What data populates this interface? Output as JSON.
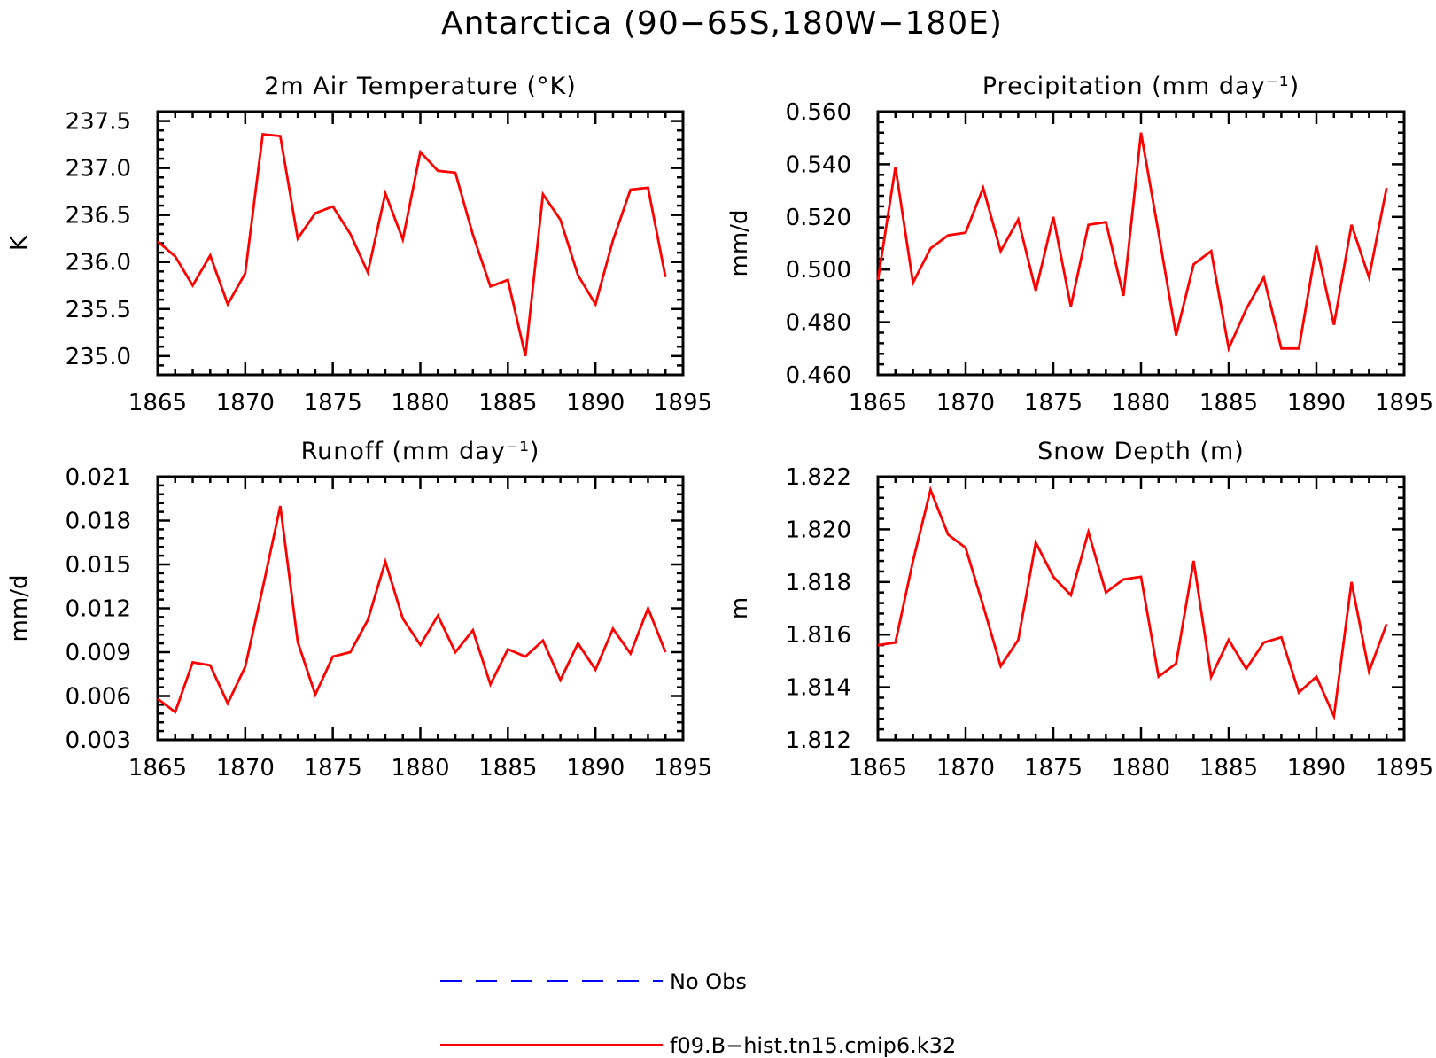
{
  "figure": {
    "title": "Antarctica (90−65S,180W−180E)"
  },
  "legend": [
    {
      "label": "No Obs",
      "color": "#0000ff",
      "style": "dashed"
    },
    {
      "label": "f09.B−hist.tn15.cmip6.k32",
      "color": "#ff0000",
      "style": "solid"
    }
  ],
  "chart_data": [
    {
      "type": "line",
      "title": "2m Air Temperature (°K)",
      "xlabel": "",
      "ylabel": "K",
      "xlim": [
        1865,
        1895
      ],
      "ylim": [
        234.8,
        237.6
      ],
      "xticks": [
        "1865",
        "1870",
        "1875",
        "1880",
        "1885",
        "1890",
        "1895"
      ],
      "yticks": [
        "235.0",
        "235.5",
        "236.0",
        "236.5",
        "237.0",
        "237.5"
      ],
      "series": [
        {
          "color": "#ff0000",
          "x": [
            1865,
            1866,
            1867,
            1868,
            1869,
            1870,
            1871,
            1872,
            1873,
            1874,
            1875,
            1876,
            1877,
            1878,
            1879,
            1880,
            1881,
            1882,
            1883,
            1884,
            1885,
            1886,
            1887,
            1888,
            1889,
            1890,
            1891,
            1892,
            1893,
            1894
          ],
          "values": [
            236.22,
            236.06,
            235.75,
            236.07,
            235.55,
            235.88,
            237.36,
            237.34,
            236.25,
            236.52,
            236.59,
            236.3,
            235.89,
            236.73,
            236.24,
            237.17,
            236.97,
            236.95,
            236.29,
            235.74,
            235.81,
            235.0,
            236.72,
            236.45,
            235.86,
            235.55,
            236.23,
            236.77,
            236.79,
            235.84
          ]
        }
      ]
    },
    {
      "type": "line",
      "title": "Precipitation (mm day⁻¹)",
      "xlabel": "",
      "ylabel": "mm/d",
      "xlim": [
        1865,
        1895
      ],
      "ylim": [
        0.46,
        0.56
      ],
      "xticks": [
        "1865",
        "1870",
        "1875",
        "1880",
        "1885",
        "1890",
        "1895"
      ],
      "yticks": [
        "0.460",
        "0.480",
        "0.500",
        "0.520",
        "0.540",
        "0.560"
      ],
      "series": [
        {
          "color": "#ff0000",
          "x": [
            1865,
            1866,
            1867,
            1868,
            1869,
            1870,
            1871,
            1872,
            1873,
            1874,
            1875,
            1876,
            1877,
            1878,
            1879,
            1880,
            1881,
            1882,
            1883,
            1884,
            1885,
            1886,
            1887,
            1888,
            1889,
            1890,
            1891,
            1892,
            1893,
            1894
          ],
          "values": [
            0.496,
            0.539,
            0.495,
            0.508,
            0.513,
            0.514,
            0.531,
            0.507,
            0.519,
            0.492,
            0.52,
            0.486,
            0.517,
            0.518,
            0.49,
            0.552,
            0.514,
            0.475,
            0.502,
            0.507,
            0.47,
            0.485,
            0.497,
            0.47,
            0.47,
            0.509,
            0.479,
            0.517,
            0.497,
            0.531
          ]
        }
      ]
    },
    {
      "type": "line",
      "title": "Runoff (mm day⁻¹)",
      "xlabel": "",
      "ylabel": "mm/d",
      "xlim": [
        1865,
        1895
      ],
      "ylim": [
        0.003,
        0.021
      ],
      "xticks": [
        "1865",
        "1870",
        "1875",
        "1880",
        "1885",
        "1890",
        "1895"
      ],
      "yticks": [
        "0.003",
        "0.006",
        "0.009",
        "0.012",
        "0.015",
        "0.018",
        "0.021"
      ],
      "series": [
        {
          "color": "#ff0000",
          "x": [
            1865,
            1866,
            1867,
            1868,
            1869,
            1870,
            1871,
            1872,
            1873,
            1874,
            1875,
            1876,
            1877,
            1878,
            1879,
            1880,
            1881,
            1882,
            1883,
            1884,
            1885,
            1886,
            1887,
            1888,
            1889,
            1890,
            1891,
            1892,
            1893,
            1894
          ],
          "values": [
            0.0058,
            0.0049,
            0.0083,
            0.0081,
            0.0055,
            0.008,
            0.0134,
            0.019,
            0.0097,
            0.0061,
            0.0087,
            0.009,
            0.0112,
            0.0152,
            0.0113,
            0.0095,
            0.0115,
            0.009,
            0.0105,
            0.0068,
            0.0092,
            0.0087,
            0.0098,
            0.0071,
            0.0096,
            0.0078,
            0.0106,
            0.0089,
            0.012,
            0.009
          ]
        }
      ]
    },
    {
      "type": "line",
      "title": "Snow Depth (m)",
      "xlabel": "",
      "ylabel": "m",
      "xlim": [
        1865,
        1895
      ],
      "ylim": [
        1.812,
        1.822
      ],
      "xticks": [
        "1865",
        "1870",
        "1875",
        "1880",
        "1885",
        "1890",
        "1895"
      ],
      "yticks": [
        "1.812",
        "1.814",
        "1.816",
        "1.818",
        "1.820",
        "1.822"
      ],
      "series": [
        {
          "color": "#ff0000",
          "x": [
            1865,
            1866,
            1867,
            1868,
            1869,
            1870,
            1871,
            1872,
            1873,
            1874,
            1875,
            1876,
            1877,
            1878,
            1879,
            1880,
            1881,
            1882,
            1883,
            1884,
            1885,
            1886,
            1887,
            1888,
            1889,
            1890,
            1891,
            1892,
            1893,
            1894
          ],
          "values": [
            1.8156,
            1.8157,
            1.8188,
            1.8215,
            1.8198,
            1.8193,
            1.8171,
            1.8148,
            1.8158,
            1.8195,
            1.8182,
            1.8175,
            1.8199,
            1.8176,
            1.8181,
            1.8182,
            1.8144,
            1.8149,
            1.8188,
            1.8144,
            1.8158,
            1.8147,
            1.8157,
            1.8159,
            1.8138,
            1.8144,
            1.8129,
            1.818,
            1.8146,
            1.8164
          ]
        }
      ]
    }
  ]
}
